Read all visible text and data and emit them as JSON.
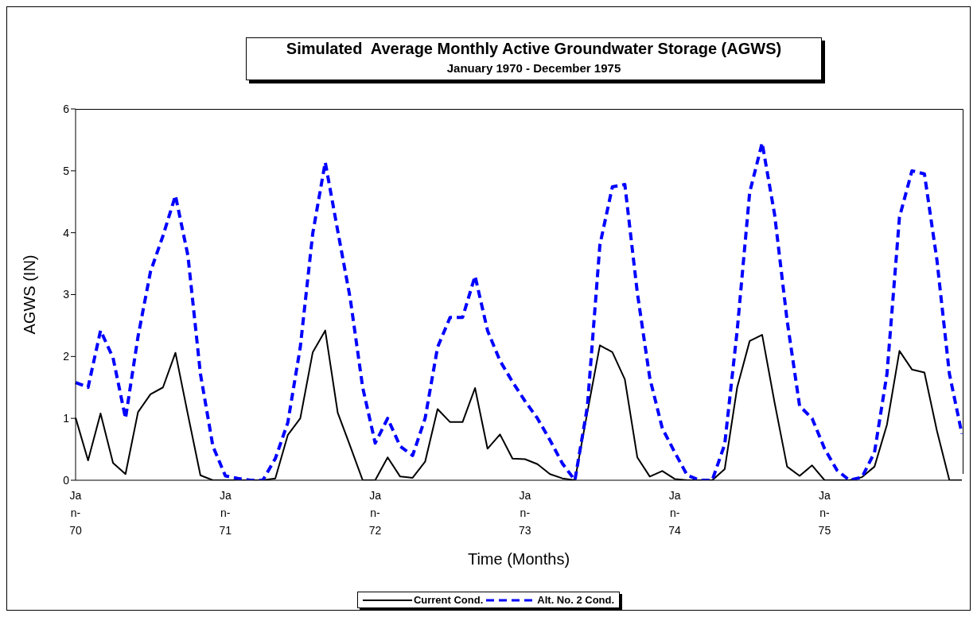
{
  "chart_data": {
    "type": "line",
    "title": "Simulated  Average Monthly Active Groundwater Storage (AGWS)",
    "subtitle": "January 1970 - December 1975",
    "xlabel": "Time (Months)",
    "ylabel": "AGWS (IN)",
    "categories": [
      "Jan-70",
      null,
      null,
      null,
      null,
      null,
      null,
      null,
      null,
      null,
      null,
      null,
      "Jan-71",
      null,
      null,
      null,
      null,
      null,
      null,
      null,
      null,
      null,
      null,
      null,
      "Jan-72",
      null,
      null,
      null,
      null,
      null,
      null,
      null,
      null,
      null,
      null,
      null,
      "Jan-73",
      null,
      null,
      null,
      null,
      null,
      null,
      null,
      null,
      null,
      null,
      null,
      "Jan-74",
      null,
      null,
      null,
      null,
      null,
      null,
      null,
      null,
      null,
      null,
      null,
      "Jan-75",
      null,
      null,
      null,
      null,
      null,
      null,
      null,
      null,
      null,
      null,
      null
    ],
    "series": [
      {
        "name": "Current Cond.",
        "color": "#000000",
        "line_style": "solid",
        "values": [
          1.01,
          0.32,
          1.08,
          0.28,
          0.1,
          1.1,
          1.39,
          1.5,
          2.06,
          1.06,
          0.08,
          0,
          0,
          0,
          0,
          0,
          0.03,
          0.73,
          1.0,
          2.07,
          2.42,
          1.09,
          0.55,
          0,
          0,
          0.37,
          0.06,
          0.04,
          0.3,
          1.15,
          0.94,
          0.94,
          1.49,
          0.51,
          0.74,
          0.35,
          0.34,
          0.26,
          0.1,
          0.03,
          0,
          1.1,
          2.18,
          2.07,
          1.63,
          0.37,
          0.06,
          0.15,
          0.02,
          0,
          0,
          0,
          0.18,
          1.5,
          2.25,
          2.35,
          1.25,
          0.22,
          0.07,
          0.24,
          0,
          0,
          0,
          0.05,
          0.22,
          0.9,
          2.09,
          1.79,
          1.74,
          0.8,
          0,
          0
        ]
      },
      {
        "name": "Alt. No. 2 Cond.",
        "color": "#0000ff",
        "line_style": "dashed",
        "values": [
          1.58,
          1.5,
          2.42,
          1.98,
          1.0,
          2.32,
          3.37,
          3.95,
          4.6,
          3.63,
          1.72,
          0.55,
          0.07,
          0.03,
          0,
          0,
          0.35,
          0.93,
          2.15,
          3.99,
          5.14,
          4.03,
          2.94,
          1.5,
          0.6,
          1.0,
          0.55,
          0.4,
          1.0,
          2.15,
          2.63,
          2.63,
          3.3,
          2.42,
          1.93,
          1.59,
          1.28,
          1.0,
          0.65,
          0.27,
          0,
          1.19,
          3.8,
          4.74,
          4.78,
          3.03,
          1.65,
          0.84,
          0.45,
          0.08,
          0,
          0,
          0.58,
          2.42,
          4.65,
          5.45,
          4.29,
          2.58,
          1.2,
          1.0,
          0.51,
          0.16,
          0,
          0.05,
          0.45,
          1.72,
          4.25,
          5.0,
          4.95,
          3.56,
          1.72,
          0.75
        ]
      }
    ],
    "ylim": [
      0,
      6
    ],
    "yticks": [
      0,
      1,
      2,
      3,
      4,
      5,
      6
    ],
    "grid": false,
    "legend": "bottom",
    "marker": "none"
  }
}
